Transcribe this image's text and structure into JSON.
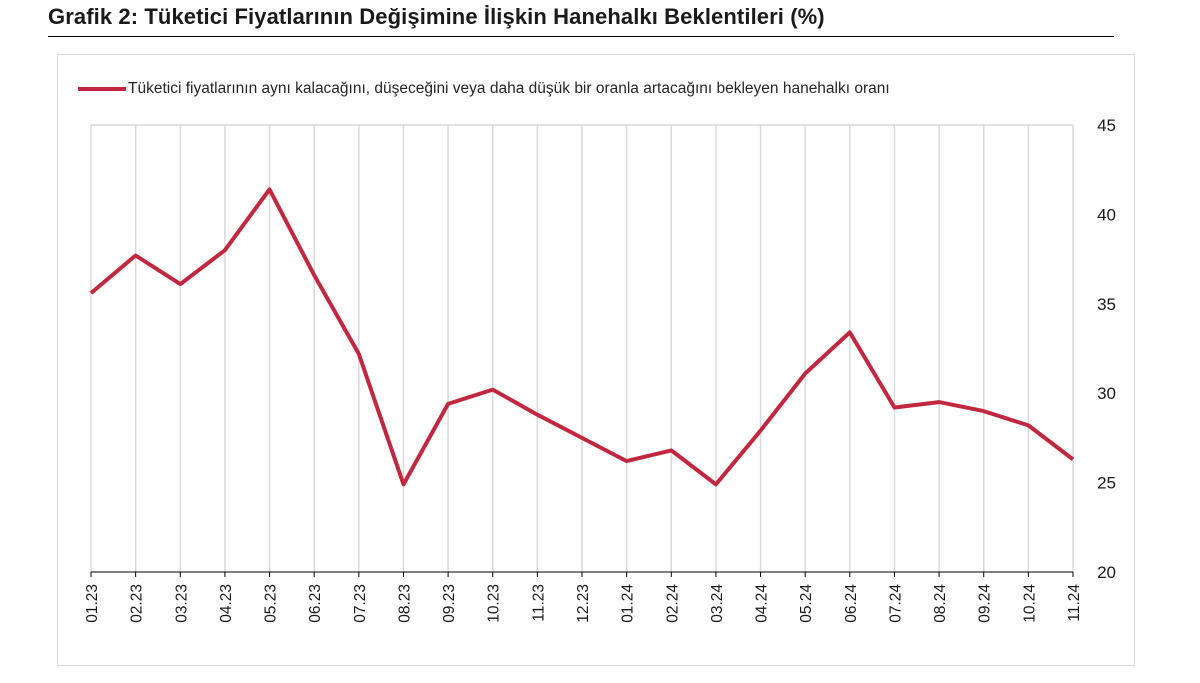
{
  "title": "Grafik 2: Tüketici Fiyatlarının Değişimine İlişkin Hanehalkı Beklentileri (%)",
  "colors": {
    "series": "#c1283f",
    "grid": "#d9d9d9"
  },
  "chart_data": {
    "type": "line",
    "title": "Grafik 2: Tüketici Fiyatlarının Değişimine İlişkin Hanehalkı Beklentileri (%)",
    "xlabel": "",
    "ylabel": "",
    "categories": [
      "01.23",
      "02.23",
      "03.23",
      "04.23",
      "05.23",
      "06.23",
      "07.23",
      "08.23",
      "09.23",
      "10.23",
      "11.23",
      "12.23",
      "01.24",
      "02.24",
      "03.24",
      "04.24",
      "05.24",
      "06.24",
      "07.24",
      "08.24",
      "09.24",
      "10.24",
      "11.24"
    ],
    "series": [
      {
        "name": "Tüketici fiyatlarının aynı kalacağını, düşeceğini veya daha düşük bir oranla artacağını bekleyen hanehalkı oranı",
        "values": [
          35.6,
          37.7,
          36.1,
          38.0,
          41.4,
          36.6,
          32.2,
          24.9,
          29.4,
          30.2,
          28.8,
          27.5,
          26.2,
          26.8,
          24.9,
          27.9,
          31.1,
          33.4,
          29.2,
          29.5,
          29.0,
          28.2,
          26.3
        ]
      }
    ],
    "ylim": [
      20,
      45
    ],
    "yticks": [
      20,
      25,
      30,
      35,
      40,
      45
    ],
    "y_axis_side": "right",
    "grid": "vertical",
    "legend_position": "top-left"
  }
}
